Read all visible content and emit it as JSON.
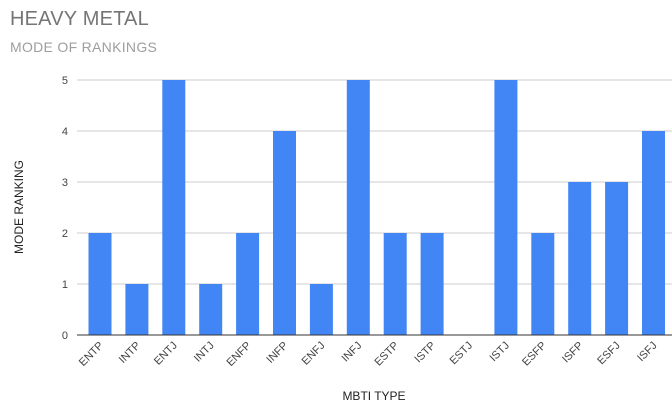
{
  "chart_data": {
    "type": "bar",
    "title": "HEAVY METAL",
    "subtitle": "MODE OF RANKINGS",
    "xlabel": "MBTI TYPE",
    "ylabel": "MODE RANKING",
    "categories": [
      "ENTP",
      "INTP",
      "ENTJ",
      "INTJ",
      "ENFP",
      "INFP",
      "ENFJ",
      "INFJ",
      "ESTP",
      "ISTP",
      "ESTJ",
      "ISTJ",
      "ESFP",
      "ISFP",
      "ESFJ",
      "ISFJ"
    ],
    "values": [
      2,
      1,
      5,
      1,
      2,
      4,
      1,
      5,
      2,
      2,
      0,
      5,
      2,
      3,
      3,
      4
    ],
    "ylim": [
      0,
      5
    ],
    "yticks": [
      0,
      1,
      2,
      3,
      4,
      5
    ],
    "grid": true,
    "bar_color": "#4285f4",
    "grid_color": "#cccccc",
    "axis_color": "#333333"
  }
}
